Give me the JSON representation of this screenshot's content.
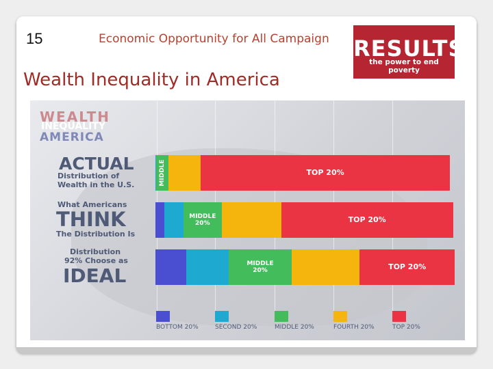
{
  "slide": {
    "number": "15",
    "campaign": "Economic Opportunity for All Campaign",
    "title": "Wealth Inequality in America",
    "logo": {
      "name": "RESULTS",
      "tagline": "the power to end poverty",
      "color": "#b52532"
    }
  },
  "infographic": {
    "header": [
      "WEALTH",
      "INEQUALITY",
      "AMERICA"
    ],
    "rows": [
      {
        "lines": [
          "ACTUAL",
          "Distribution of",
          "Wealth in the U.S."
        ]
      },
      {
        "lines": [
          "What Americans",
          "THINK",
          "The Distribution Is"
        ]
      },
      {
        "lines": [
          "Distribution",
          "92% Choose as",
          "IDEAL"
        ]
      }
    ],
    "colors": {
      "bottom": "#4a4fd1",
      "second": "#1eaad0",
      "middle": "#43bd5b",
      "fourth": "#f5b50d",
      "top": "#ea3343"
    },
    "legend": [
      "BOTTOM 20%",
      "SECOND 20%",
      "MIDDLE 20%",
      "FOURTH 20%",
      "TOP 20%"
    ]
  },
  "chart_data": {
    "type": "bar",
    "categories": [
      "ACTUAL",
      "THINK",
      "IDEAL"
    ],
    "series": [
      {
        "name": "BOTTOM 20%",
        "values": [
          0.1,
          3.1,
          10.5
        ],
        "label": ""
      },
      {
        "name": "SECOND 20%",
        "values": [
          0.2,
          6.3,
          14.2
        ],
        "label": ""
      },
      {
        "name": "MIDDLE 20%",
        "values": [
          4.0,
          13.0,
          21.3
        ],
        "label": "MIDDLE"
      },
      {
        "name": "FOURTH 20%",
        "values": [
          11.0,
          20.0,
          22.9
        ],
        "label": ""
      },
      {
        "name": "TOP 20%",
        "values": [
          84.0,
          58.0,
          32.0
        ],
        "label": "TOP 20%"
      }
    ],
    "segment_labels": [
      [
        "",
        "",
        "MIDDLE",
        "",
        "TOP 20%"
      ],
      [
        "",
        "",
        "MIDDLE 20%",
        "",
        "TOP 20%"
      ],
      [
        "",
        "",
        "MIDDLE 20%",
        "",
        "TOP 20%"
      ]
    ],
    "xlim": [
      0,
      100
    ]
  }
}
